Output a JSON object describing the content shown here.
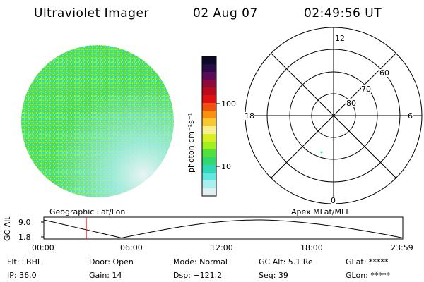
{
  "header": {
    "instrument": "Ultraviolet Imager",
    "date": "02 Aug 07",
    "time": "02:49:56 UT"
  },
  "colorbar": {
    "unit_label": "photon cm⁻²s⁻¹",
    "ticks": [
      "100",
      "10"
    ],
    "colors": [
      "#0a0a28",
      "#2a0a44",
      "#5a0a5a",
      "#8a0a3a",
      "#b80a1a",
      "#e01010",
      "#f05010",
      "#f89010",
      "#f8c830",
      "#f8f090",
      "#d8f020",
      "#a0f020",
      "#50e040",
      "#30d870",
      "#30d8b8",
      "#60e8e0",
      "#a8f0f0",
      "#e0f0f0"
    ]
  },
  "polar": {
    "mlt_labels": {
      "top": "12",
      "bottom": "0",
      "left": "18",
      "right": "6"
    },
    "lat_labels": [
      "60",
      "70",
      "80"
    ]
  },
  "timeline": {
    "left_labels": [
      "Geographic Lat/Lon"
    ],
    "right_label": "Apex MLat/MLT",
    "y_axis_label": "GC Alt",
    "y_ticks": [
      "9.0",
      "1.8"
    ],
    "x_ticks": [
      "00:00",
      "06:00",
      "12:00",
      "18:00",
      "23:59"
    ],
    "current_time_marker_hours": 2.83,
    "marker_color": "#e02020"
  },
  "status": {
    "flt": "Flt: LBHL",
    "door": "Door: Open",
    "mode": "Mode: Normal",
    "gc_alt": "GC Alt: 5.1 Re",
    "glat": "GLat: *****",
    "ip": "IP: 36.0",
    "gain": "Gain: 14",
    "dsp": "Dsp: −121.2",
    "seq": "Seq: 39",
    "glon": "GLon: *****"
  }
}
